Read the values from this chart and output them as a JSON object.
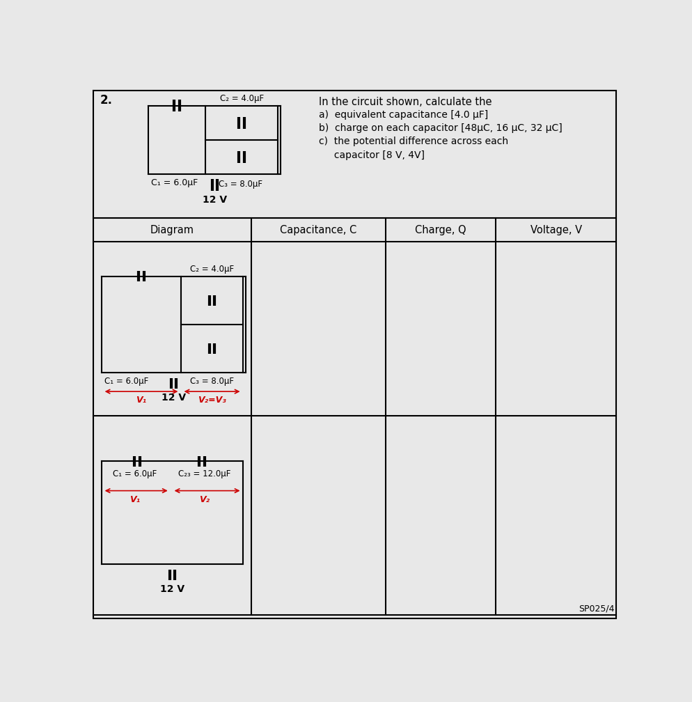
{
  "bg_color": "#e8e8e8",
  "white": "#f0f0f0",
  "border_color": "#000000",
  "problem_number": "2.",
  "question_text": "In the circuit shown, calculate the",
  "answers": [
    "a)  equivalent capacitance [4.0 μF]",
    "b)  charge on each capacitor [48μC, 16 μC, 32 μC]",
    "c)  the potential difference across each",
    "     capacitor [8 V, 4V]"
  ],
  "table_headers": [
    "Diagram",
    "Capacitance, C",
    "Charge, Q",
    "Voltage, V"
  ],
  "footer_text": "SP025/4",
  "red_color": "#cc0000",
  "top_circuit": {
    "C2_label": "C₂ = 4.0μF",
    "C1_label": "C₁ = 6.0μF",
    "C3_label": "C₃ = 8.0μF",
    "V_label": "12 V"
  },
  "diag1": {
    "C2_label": "C₂ = 4.0μF",
    "C1_label": "C₁ = 6.0μF",
    "C3_label": "C₃ = 8.0μF",
    "V1_label": "V₁",
    "V23_label": "V₂=V₃",
    "V_label": "12 V"
  },
  "diag2": {
    "C1_label": "C₁ = 6.0μF",
    "C23_label": "C₂₃ = 12.0μF",
    "V1_label": "V₁",
    "V2_label": "V₂",
    "V_label": "12 V"
  }
}
